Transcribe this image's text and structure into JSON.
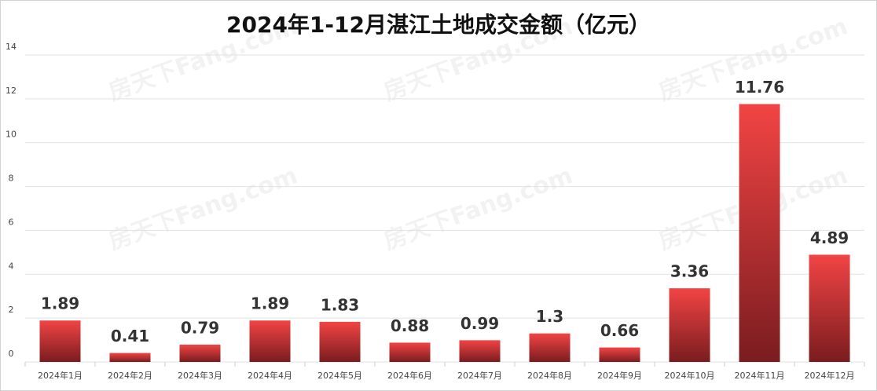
{
  "chart_data": {
    "type": "bar",
    "title": "2024年1-12月湛江土地成交金额（亿元）",
    "categories": [
      "2024年1月",
      "2024年2月",
      "2024年3月",
      "2024年4月",
      "2024年5月",
      "2024年6月",
      "2024年7月",
      "2024年8月",
      "2024年9月",
      "2024年10月",
      "2024年11月",
      "2024年12月"
    ],
    "values": [
      1.89,
      0.41,
      0.79,
      1.89,
      1.83,
      0.88,
      0.99,
      1.3,
      0.66,
      3.36,
      11.76,
      4.89
    ],
    "color": "#f24444",
    "ylim": [
      0,
      14
    ],
    "yticks": [
      0,
      2,
      4,
      6,
      8,
      10,
      12,
      14
    ],
    "grid": true,
    "watermark": "房天下Fang.com"
  }
}
